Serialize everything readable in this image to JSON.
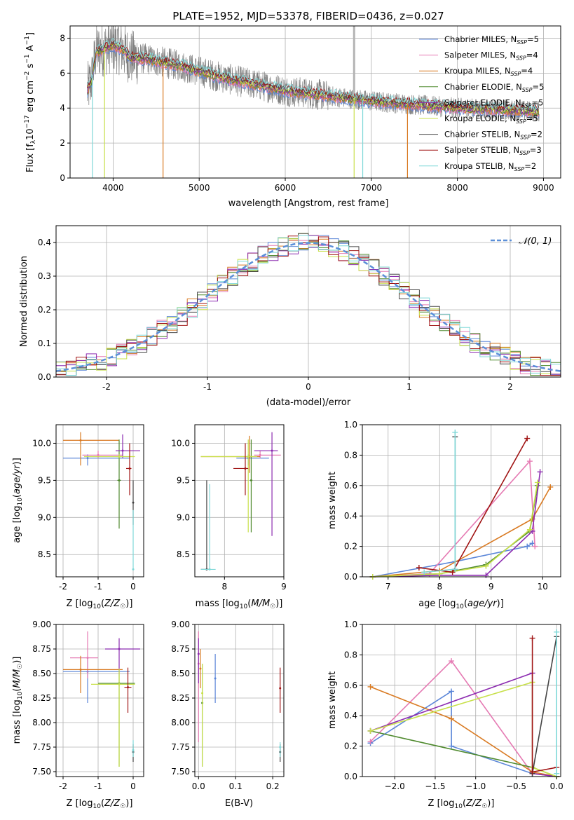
{
  "colors": {
    "chab_miles": "#5b86d8",
    "salp_miles": "#e57ab3",
    "krou_miles": "#d97a22",
    "chab_elodie": "#4f8a2e",
    "salp_elodie": "#8c2bb0",
    "krou_elodie": "#c8e04a",
    "chab_stelib": "#444444",
    "salp_stelib": "#a11515",
    "krou_stelib": "#7fd8d8",
    "data": "#808080",
    "normal": "#5b8fd8"
  },
  "chart_data": [
    {
      "id": "spectrum",
      "type": "line",
      "title": "PLATE=1952, MJD=53378, FIBERID=0436, z=0.027",
      "xlabel": "wavelength [Angstrom, rest frame]",
      "ylabel": "Flux [f_λ10^-17 erg cm^-2 s^-1 A^-1]",
      "xlim": [
        3500,
        9200
      ],
      "ylim": [
        0,
        8.7
      ],
      "xticks": [
        4000,
        5000,
        6000,
        7000,
        8000,
        9000
      ],
      "yticks": [
        0,
        2,
        4,
        6,
        8
      ],
      "legend": [
        "Chabrier MILES, N_SSP=5",
        "Salpeter MILES, N_SSP=4",
        "Kroupa MILES, N_SSP=4",
        "Chabrier ELODIE, N_SSP=5",
        "Salpeter ELODIE, N_SSP=5",
        "Kroupa ELODIE, N_SSP=5",
        "Chabrier STELIB, N_SSP=2",
        "Salpeter STELIB, N_SSP=3",
        "Kroupa STELIB, N_SSP=2"
      ],
      "legend_placement": "upper-right",
      "model_continuum": {
        "x": [
          3700,
          3750,
          3800,
          3900,
          4000,
          4100,
          4200,
          4400,
          4600,
          4800,
          5000,
          5300,
          5600,
          6000,
          6500,
          7000,
          7500,
          8000,
          8500,
          9000
        ],
        "y": [
          5.0,
          5.6,
          7.2,
          7.4,
          7.6,
          7.4,
          6.9,
          6.8,
          6.6,
          6.4,
          6.1,
          5.7,
          5.4,
          5.0,
          4.7,
          4.4,
          4.2,
          4.0,
          3.9,
          3.8
        ]
      }
    },
    {
      "id": "residuals",
      "type": "line",
      "xlabel": "(data-model)/error",
      "ylabel": "Normed distribution",
      "xlim": [
        -2.5,
        2.5
      ],
      "ylim": [
        0,
        0.45
      ],
      "xticks": [
        -2,
        -1,
        0,
        1,
        2
      ],
      "yticks": [
        0.0,
        0.1,
        0.2,
        0.3,
        0.4
      ],
      "legend": [
        "𝒩(0, 1)"
      ],
      "legend_placement": "upper-right"
    },
    {
      "id": "z_age",
      "type": "scatter",
      "xlabel": "Z [log10(Z/Z☉)]",
      "ylabel": "age  [log10(age/yr)]",
      "xlim": [
        -2.2,
        0.3
      ],
      "ylim": [
        8.2,
        10.25
      ],
      "xticks": [
        -2,
        -1,
        0
      ],
      "yticks": [
        8.5,
        9.0,
        9.5,
        10.0
      ],
      "points": [
        {
          "s": "chab_miles",
          "x": -1.3,
          "y": 9.8,
          "xe": [
            -2.0,
            -0.1
          ],
          "ye": [
            9.7,
            9.85
          ]
        },
        {
          "s": "salp_miles",
          "x": -1.0,
          "y": 9.84,
          "xe": [
            -1.45,
            -0.3
          ],
          "ye": [
            9.8,
            9.9
          ]
        },
        {
          "s": "krou_miles",
          "x": -1.5,
          "y": 10.04,
          "xe": [
            -2.0,
            -0.4
          ],
          "ye": [
            9.7,
            10.15
          ]
        },
        {
          "s": "chab_elodie",
          "x": -0.4,
          "y": 9.5,
          "xe": [
            -0.45,
            -0.35
          ],
          "ye": [
            8.85,
            10.05
          ]
        },
        {
          "s": "salp_elodie",
          "x": -0.3,
          "y": 9.9,
          "xe": [
            -0.5,
            0.2
          ],
          "ye": [
            9.8,
            10.12
          ]
        },
        {
          "s": "krou_elodie",
          "x": -0.4,
          "y": 9.82,
          "xe": [
            -1.4,
            0.05
          ],
          "ye": [
            9.8,
            9.85
          ]
        },
        {
          "s": "chab_stelib",
          "x": 0.0,
          "y": 9.2,
          "xe": [
            -0.02,
            0.02
          ],
          "ye": [
            8.9,
            9.5
          ]
        },
        {
          "s": "salp_stelib",
          "x": -0.1,
          "y": 9.66,
          "xe": [
            -0.2,
            -0.05
          ],
          "ye": [
            9.3,
            10.0
          ]
        },
        {
          "s": "krou_stelib",
          "x": 0.0,
          "y": 8.3,
          "xe": [
            -0.03,
            0.03
          ],
          "ye": [
            8.3,
            9.1
          ]
        }
      ]
    },
    {
      "id": "mass_age",
      "type": "scatter",
      "xlabel": "mass [log10(M/M☉)]",
      "ylabel": "",
      "xlim": [
        7.5,
        9.0
      ],
      "ylim": [
        8.2,
        10.25
      ],
      "xticks": [
        8,
        9
      ],
      "yticks": [
        8.5,
        9.0,
        9.5,
        10.0
      ],
      "points": [
        {
          "s": "chab_miles",
          "x": 8.4,
          "y": 9.8,
          "xe": [
            8.2,
            8.75
          ],
          "ye": [
            9.7,
            9.85
          ]
        },
        {
          "s": "salp_miles",
          "x": 8.6,
          "y": 9.84,
          "xe": [
            8.5,
            8.95
          ],
          "ye": [
            9.8,
            9.9
          ]
        },
        {
          "s": "krou_miles",
          "x": 8.42,
          "y": 9.82,
          "xe": [
            7.6,
            8.6
          ],
          "ye": [
            9.6,
            10.1
          ]
        },
        {
          "s": "chab_elodie",
          "x": 8.45,
          "y": 9.5,
          "xe": [
            8.43,
            8.47
          ],
          "ye": [
            8.8,
            10.05
          ]
        },
        {
          "s": "salp_elodie",
          "x": 8.8,
          "y": 9.9,
          "xe": [
            8.5,
            8.9
          ],
          "ye": [
            8.75,
            10.15
          ]
        },
        {
          "s": "krou_elodie",
          "x": 8.4,
          "y": 9.82,
          "xe": [
            7.6,
            8.55
          ],
          "ye": [
            8.8,
            10.05
          ]
        },
        {
          "s": "chab_stelib",
          "x": 7.7,
          "y": 8.3,
          "xe": [
            7.6,
            7.75
          ],
          "ye": [
            8.3,
            9.5
          ]
        },
        {
          "s": "salp_stelib",
          "x": 8.35,
          "y": 9.66,
          "xe": [
            8.15,
            8.4
          ],
          "ye": [
            9.3,
            10.0
          ]
        },
        {
          "s": "krou_stelib",
          "x": 7.75,
          "y": 8.3,
          "xe": [
            7.6,
            7.85
          ],
          "ye": [
            8.3,
            9.45
          ]
        }
      ]
    },
    {
      "id": "age_weight",
      "type": "line",
      "xlabel": "age  [log10(age/yr)]",
      "ylabel": "mass weight",
      "xlim": [
        6.5,
        10.35
      ],
      "ylim": [
        0,
        1.0
      ],
      "xticks": [
        7,
        8,
        9,
        10
      ],
      "yticks": [
        0.0,
        0.2,
        0.4,
        0.6,
        0.8,
        1.0
      ],
      "series": [
        {
          "s": "chab_miles",
          "x": [
            6.7,
            8.3,
            9.7,
            9.8
          ],
          "y": [
            0.0,
            0.1,
            0.2,
            0.22
          ]
        },
        {
          "s": "salp_miles",
          "x": [
            6.7,
            7.8,
            9.75,
            9.85
          ],
          "y": [
            0.0,
            0.02,
            0.76,
            0.2
          ]
        },
        {
          "s": "krou_miles",
          "x": [
            6.7,
            8.0,
            9.8,
            10.15
          ],
          "y": [
            0.0,
            0.04,
            0.38,
            0.59
          ]
        },
        {
          "s": "chab_elodie",
          "x": [
            6.7,
            8.0,
            8.9,
            9.75,
            9.9
          ],
          "y": [
            0.0,
            0.02,
            0.08,
            0.3,
            0.6
          ]
        },
        {
          "s": "salp_elodie",
          "x": [
            6.7,
            8.0,
            8.9,
            9.8,
            9.95
          ],
          "y": [
            0.0,
            0.01,
            0.01,
            0.3,
            0.69
          ]
        },
        {
          "s": "krou_elodie",
          "x": [
            6.7,
            8.0,
            8.9,
            9.75,
            9.9
          ],
          "y": [
            0.0,
            0.02,
            0.07,
            0.31,
            0.62
          ]
        },
        {
          "s": "chab_stelib",
          "x": [
            8.3,
            8.3
          ],
          "y": [
            0.05,
            0.92
          ]
        },
        {
          "s": "salp_stelib",
          "x": [
            7.6,
            8.25,
            9.7
          ],
          "y": [
            0.06,
            0.03,
            0.91
          ]
        },
        {
          "s": "krou_stelib",
          "x": [
            7.7,
            8.3,
            8.3
          ],
          "y": [
            0.03,
            0.05,
            0.95
          ]
        }
      ]
    },
    {
      "id": "z_mass",
      "type": "scatter",
      "xlabel": "Z [log10(Z/Z☉)]",
      "ylabel": "mass [log10(M/M☉)]",
      "xlim": [
        -2.2,
        0.3
      ],
      "ylim": [
        7.45,
        9.0
      ],
      "xticks": [
        -2,
        -1,
        0
      ],
      "yticks": [
        7.5,
        7.75,
        8.0,
        8.25,
        8.5,
        8.75,
        9.0
      ],
      "points": [
        {
          "s": "chab_miles",
          "x": -1.3,
          "y": 8.52,
          "xe": [
            -2.0,
            -0.1
          ],
          "ye": [
            8.2,
            8.65
          ]
        },
        {
          "s": "salp_miles",
          "x": -1.3,
          "y": 8.66,
          "xe": [
            -1.8,
            -1.0
          ],
          "ye": [
            8.45,
            8.93
          ]
        },
        {
          "s": "krou_miles",
          "x": -1.5,
          "y": 8.54,
          "xe": [
            -2.0,
            -0.3
          ],
          "ye": [
            8.3,
            8.68
          ]
        },
        {
          "s": "chab_elodie",
          "x": -0.4,
          "y": 8.4,
          "xe": [
            -1.0,
            0.05
          ],
          "ye": [
            7.55,
            8.5
          ]
        },
        {
          "s": "salp_elodie",
          "x": -0.4,
          "y": 8.75,
          "xe": [
            -0.8,
            0.2
          ],
          "ye": [
            8.5,
            8.86
          ]
        },
        {
          "s": "krou_elodie",
          "x": -0.4,
          "y": 8.39,
          "xe": [
            -1.2,
            0.05
          ],
          "ye": [
            7.55,
            8.55
          ]
        },
        {
          "s": "chab_stelib",
          "x": 0.0,
          "y": 7.7,
          "xe": [
            -0.02,
            0.02
          ],
          "ye": [
            7.6,
            7.78
          ]
        },
        {
          "s": "salp_stelib",
          "x": -0.15,
          "y": 8.36,
          "xe": [
            -0.25,
            -0.05
          ],
          "ye": [
            8.1,
            8.56
          ]
        },
        {
          "s": "krou_stelib",
          "x": 0.0,
          "y": 7.72,
          "xe": [
            -0.03,
            0.03
          ],
          "ye": [
            7.65,
            7.82
          ]
        }
      ]
    },
    {
      "id": "ebv_mass",
      "type": "scatter",
      "xlabel": "E(B-V)",
      "ylabel": "",
      "xlim": [
        -0.01,
        0.23
      ],
      "ylim": [
        7.45,
        9.0
      ],
      "xticks": [
        0.0,
        0.1,
        0.2
      ],
      "yticks": [
        7.5,
        7.75,
        8.0,
        8.25,
        8.5,
        8.75,
        9.0
      ],
      "points": [
        {
          "s": "chab_miles",
          "x": 0.045,
          "y": 8.45,
          "xe": [
            0.045,
            0.045
          ],
          "ye": [
            8.2,
            8.7
          ]
        },
        {
          "s": "salp_miles",
          "x": 0.0,
          "y": 8.6,
          "xe": [
            0.0,
            0.0
          ],
          "ye": [
            7.8,
            8.93
          ]
        },
        {
          "s": "krou_miles",
          "x": 0.005,
          "y": 8.55,
          "xe": [
            0.005,
            0.005
          ],
          "ye": [
            8.35,
            8.75
          ]
        },
        {
          "s": "chab_elodie",
          "x": 0.01,
          "y": 8.2,
          "xe": [
            0.01,
            0.01
          ],
          "ye": [
            7.55,
            8.6
          ]
        },
        {
          "s": "salp_elodie",
          "x": 0.0,
          "y": 8.7,
          "xe": [
            0.0,
            0.0
          ],
          "ye": [
            8.4,
            8.86
          ]
        },
        {
          "s": "krou_elodie",
          "x": 0.01,
          "y": 8.3,
          "xe": [
            0.01,
            0.01
          ],
          "ye": [
            7.55,
            8.6
          ]
        },
        {
          "s": "chab_stelib",
          "x": 0.22,
          "y": 7.7,
          "xe": [
            0.22,
            0.22
          ],
          "ye": [
            7.6,
            7.78
          ]
        },
        {
          "s": "salp_stelib",
          "x": 0.22,
          "y": 8.35,
          "xe": [
            0.22,
            0.22
          ],
          "ye": [
            8.1,
            8.56
          ]
        },
        {
          "s": "krou_stelib",
          "x": 0.22,
          "y": 7.75,
          "xe": [
            0.22,
            0.22
          ],
          "ye": [
            7.65,
            7.8
          ]
        }
      ]
    },
    {
      "id": "z_weight",
      "type": "line",
      "xlabel": "Z [log10(Z/Z☉)]",
      "ylabel": "mass weight",
      "xlim": [
        -2.4,
        0.05
      ],
      "ylim": [
        0,
        1.0
      ],
      "xticks": [
        -2.0,
        -1.5,
        -1.0,
        -0.5,
        0.0
      ],
      "yticks": [
        0.0,
        0.2,
        0.4,
        0.6,
        0.8,
        1.0
      ],
      "series": [
        {
          "s": "chab_miles",
          "x": [
            -2.3,
            -1.3,
            -1.3,
            -0.3,
            0.0
          ],
          "y": [
            0.22,
            0.56,
            0.2,
            0.02,
            0.0
          ]
        },
        {
          "s": "salp_miles",
          "x": [
            -2.3,
            -1.3,
            -0.3,
            0.0
          ],
          "y": [
            0.23,
            0.76,
            0.02,
            0.0
          ]
        },
        {
          "s": "krou_miles",
          "x": [
            -2.3,
            -1.3,
            -0.3,
            0.0
          ],
          "y": [
            0.59,
            0.38,
            0.03,
            0.0
          ]
        },
        {
          "s": "chab_elodie",
          "x": [
            -2.3,
            -0.3,
            0.0
          ],
          "y": [
            0.3,
            0.06,
            0.0
          ]
        },
        {
          "s": "salp_elodie",
          "x": [
            -2.3,
            -0.3,
            -0.3,
            0.0
          ],
          "y": [
            0.3,
            0.68,
            0.02,
            0.0
          ]
        },
        {
          "s": "krou_elodie",
          "x": [
            -2.3,
            -0.3,
            -0.3,
            0.0
          ],
          "y": [
            0.3,
            0.62,
            0.06,
            0.0
          ]
        },
        {
          "s": "chab_stelib",
          "x": [
            -0.3,
            0.0
          ],
          "y": [
            0.02,
            0.92
          ]
        },
        {
          "s": "salp_stelib",
          "x": [
            -0.3,
            -0.3,
            0.0
          ],
          "y": [
            0.91,
            0.03,
            0.06
          ]
        },
        {
          "s": "krou_stelib",
          "x": [
            0.0,
            0.0
          ],
          "y": [
            0.02,
            0.95
          ]
        }
      ]
    }
  ]
}
